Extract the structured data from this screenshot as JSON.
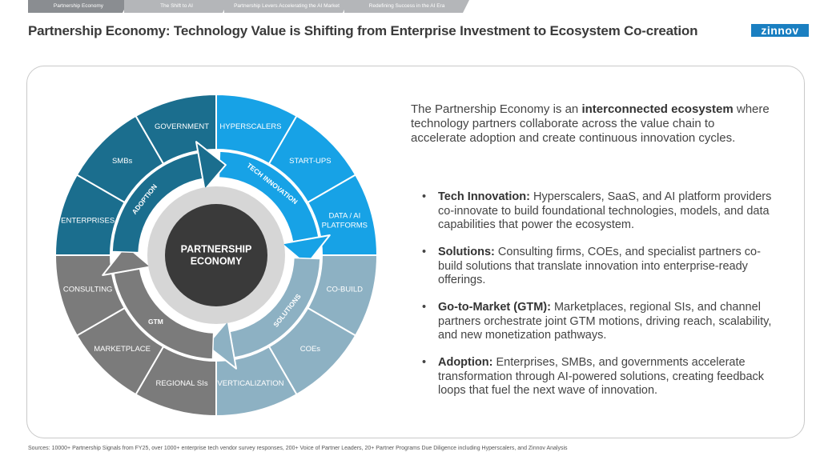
{
  "tabs": [
    "Partnership Economy",
    "The Shift to AI",
    "Partnership Levers Accelerating the AI Market",
    "Redefining Success in the AI Era"
  ],
  "title": "Partnership Economy: Technology Value is Shifting from Enterprise Investment to Ecosystem Co-creation",
  "logo": "zinnov",
  "diagram": {
    "center": [
      "PARTNERSHIP",
      "ECONOMY"
    ],
    "quadrants": [
      {
        "label": "TECH INNOVATION",
        "color": "#17a2e6",
        "segments": [
          [
            "HYPERSCALERS"
          ],
          [
            "START-UPS"
          ],
          [
            "DATA / AI",
            "PLATFORMS"
          ]
        ]
      },
      {
        "label": "SOLUTIONS",
        "color": "#8db1c3",
        "segments": [
          [
            "CO-BUILD"
          ],
          [
            "COEs"
          ],
          [
            "VERTICALIZATION"
          ]
        ]
      },
      {
        "label": "GTM",
        "color": "#7b7b7b",
        "segments": [
          [
            "REGIONAL SIs"
          ],
          [
            "MARKETPLACE"
          ],
          [
            "CONSULTING"
          ]
        ]
      },
      {
        "label": "ADOPTION",
        "color": "#1b6e8e",
        "segments": [
          [
            "ENTERPRISES"
          ],
          [
            "SMBs"
          ],
          [
            "GOVERNMENT"
          ]
        ]
      }
    ]
  },
  "intro": {
    "lead": "The Partnership Economy is an ",
    "bold": "interconnected ecosystem",
    "rest": " where technology partners collaborate across the value chain to accelerate adoption and create continuous innovation cycles."
  },
  "bullets": [
    {
      "title": "Tech Innovation:",
      "text": " Hyperscalers, SaaS, and AI platform providers co-innovate to build foundational technologies, models, and data capabilities that power the ecosystem."
    },
    {
      "title": "Solutions:",
      "text": " Consulting firms, COEs, and specialist partners co-build solutions that translate innovation into enterprise-ready offerings."
    },
    {
      "title": "Go-to-Market (GTM):",
      "text": " Marketplaces, regional SIs, and channel partners orchestrate joint GTM motions, driving reach, scalability, and new monetization pathways."
    },
    {
      "title": "Adoption:",
      "text": " Enterprises, SMBs, and governments accelerate transformation through AI-powered solutions, creating feedback loops that fuel the next wave of innovation."
    }
  ],
  "source": "Sources: 10000+ Partnership Signals from FY25, over 1000+ enterprise tech vendor survey responses, 200+ Voice of Partner Leaders, 20+ Partner Programs Due Diligence including Hyperscalers, and Zinnov Analysis"
}
